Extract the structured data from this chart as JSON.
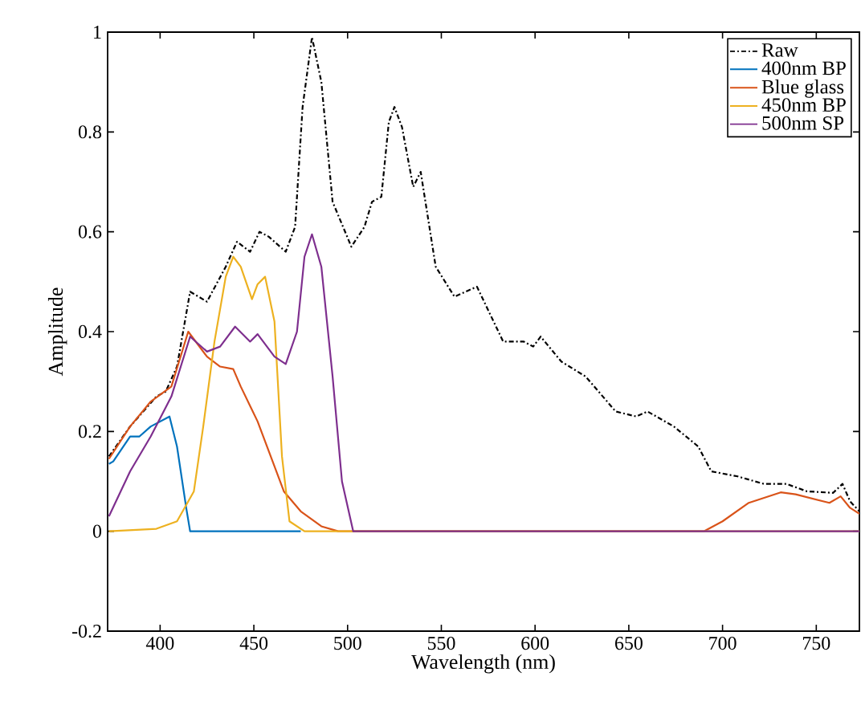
{
  "chart_data": {
    "type": "line",
    "xlabel": "Wavelength (nm)",
    "ylabel": "Amplitude",
    "xlim": [
      372,
      773
    ],
    "ylim": [
      -0.2,
      1
    ],
    "xticks": [
      400,
      450,
      500,
      550,
      600,
      650,
      700,
      750
    ],
    "yticks": [
      -0.2,
      0,
      0.2,
      0.4,
      0.6,
      0.8,
      1
    ],
    "legend": "top right",
    "marker": "none",
    "grid": false,
    "series": [
      {
        "name": "Raw",
        "color": "#000000",
        "line_style": "dashdot",
        "x": [
          372.7,
          384,
          398,
          403,
          409,
          416,
          425,
          435,
          441,
          448,
          453,
          458,
          467,
          472,
          476,
          481,
          486,
          492,
          502,
          509,
          513,
          518,
          522,
          525,
          529,
          535,
          539,
          547,
          557,
          569,
          583,
          594,
          599,
          603,
          614,
          627,
          643,
          654,
          660,
          674,
          687,
          694,
          708,
          722,
          734,
          745,
          759,
          764,
          768,
          773
        ],
        "values": [
          0.15,
          0.21,
          0.27,
          0.28,
          0.33,
          0.48,
          0.46,
          0.53,
          0.58,
          0.56,
          0.6,
          0.59,
          0.56,
          0.61,
          0.85,
          0.99,
          0.9,
          0.66,
          0.57,
          0.61,
          0.66,
          0.67,
          0.82,
          0.85,
          0.81,
          0.69,
          0.72,
          0.53,
          0.47,
          0.49,
          0.38,
          0.38,
          0.37,
          0.39,
          0.34,
          0.31,
          0.24,
          0.23,
          0.24,
          0.21,
          0.17,
          0.12,
          0.11,
          0.095,
          0.095,
          0.08,
          0.077,
          0.095,
          0.06,
          0.04
        ]
      },
      {
        "name": "400nm BP",
        "color": "#0072bd",
        "line_style": "solid",
        "x": [
          372.7,
          375,
          384,
          389,
          395,
          405,
          409,
          414,
          416,
          475
        ],
        "values": [
          0.135,
          0.14,
          0.19,
          0.19,
          0.21,
          0.23,
          0.17,
          0.045,
          0,
          0
        ]
      },
      {
        "name": "Blue glass",
        "color": "#d95319",
        "line_style": "solid",
        "x": [
          372.7,
          384,
          395,
          406,
          415,
          425,
          432,
          439,
          443,
          452,
          458,
          466,
          475,
          486,
          495,
          690,
          700,
          714,
          731,
          739,
          757,
          763,
          768,
          773
        ],
        "values": [
          0.145,
          0.21,
          0.26,
          0.29,
          0.4,
          0.35,
          0.33,
          0.325,
          0.29,
          0.22,
          0.16,
          0.08,
          0.04,
          0.01,
          0,
          0,
          0.02,
          0.057,
          0.078,
          0.074,
          0.057,
          0.07,
          0.047,
          0.035
        ]
      },
      {
        "name": "450nm BP",
        "color": "#edb120",
        "line_style": "solid",
        "x": [
          372.7,
          398,
          409,
          418,
          423,
          429,
          435,
          439,
          443,
          449,
          452,
          456,
          461,
          465,
          469,
          477,
          773
        ],
        "values": [
          0,
          0.005,
          0.02,
          0.08,
          0.21,
          0.38,
          0.51,
          0.55,
          0.53,
          0.465,
          0.495,
          0.51,
          0.42,
          0.15,
          0.02,
          0,
          0
        ]
      },
      {
        "name": "500nm SP",
        "color": "#7e2f8e",
        "line_style": "solid",
        "x": [
          372.7,
          384,
          395,
          406,
          416,
          425,
          432,
          440,
          448,
          452,
          461,
          467,
          473,
          477,
          481,
          486,
          492,
          497,
          503,
          773
        ],
        "values": [
          0.03,
          0.12,
          0.19,
          0.27,
          0.39,
          0.36,
          0.37,
          0.41,
          0.38,
          0.395,
          0.35,
          0.335,
          0.4,
          0.55,
          0.595,
          0.53,
          0.31,
          0.1,
          0,
          0
        ]
      }
    ]
  }
}
